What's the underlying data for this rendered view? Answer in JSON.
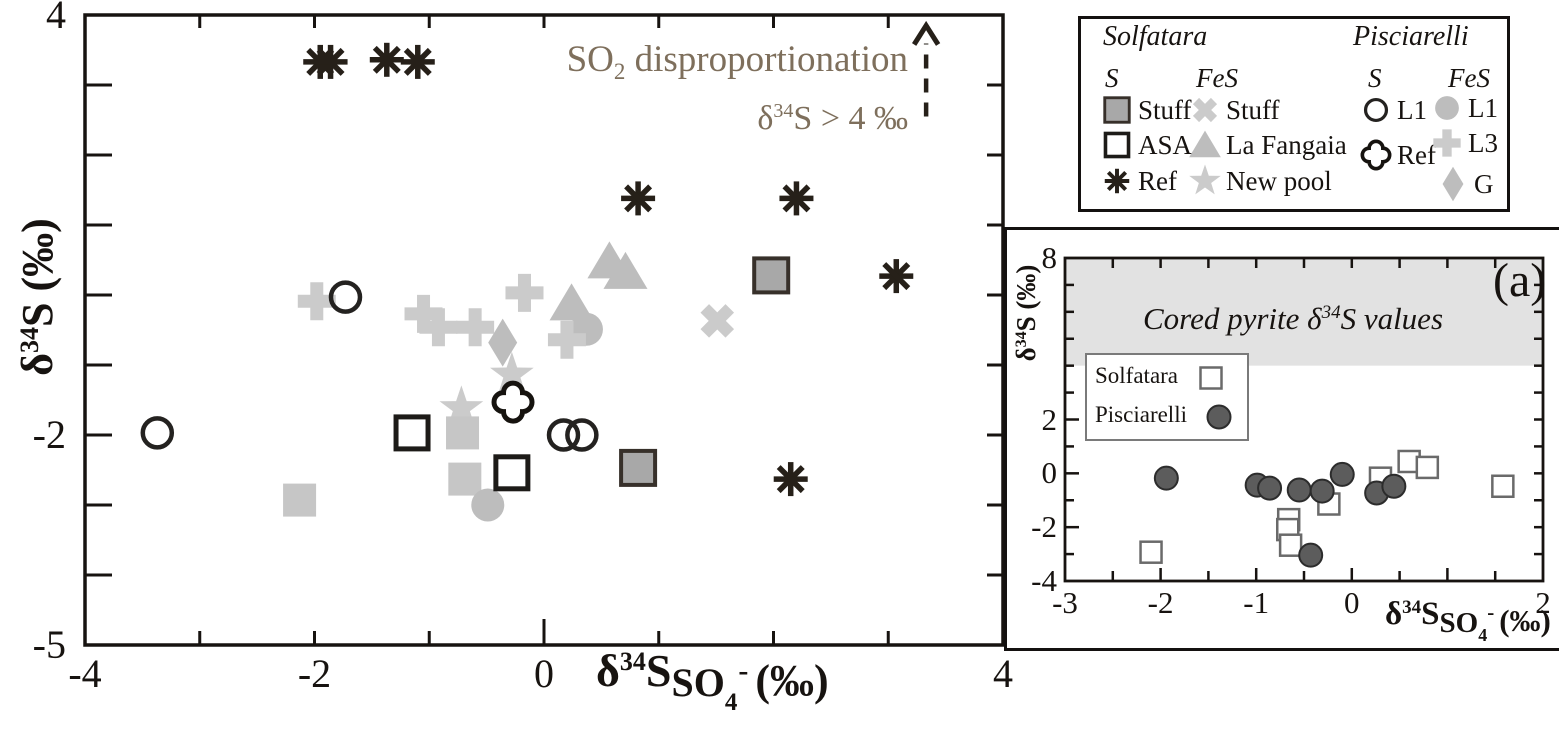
{
  "colors": {
    "ink": "#171310",
    "light_gray": "#cbcbcb",
    "mid_gray": "#bdbdbd",
    "square_fill": "#a8a8a8",
    "square_gray": "#c6c6c6",
    "annotation": "#7e6f5c",
    "band": "#e2e2e2",
    "inset_point_fill": "#5c5c5c",
    "inset_point_stroke": "#2c2c2c",
    "inset_square_stroke": "#6a6a6a"
  },
  "labels": {
    "main_y": {
      "d": "δ",
      "iso": "34",
      "rest": "S (‰)"
    },
    "main_x": {
      "d": "δ",
      "iso": "34",
      "s": "S",
      "so": "SO",
      "four": "4",
      "minus": "-",
      "unit": "(‰)"
    },
    "annotation1": {
      "pre": "SO",
      "sub": "2",
      "post": " disproportionation"
    },
    "annotation2": {
      "d": "δ",
      "iso": "34",
      "post": "S > 4 ‰"
    },
    "inset_band": {
      "pre": "Cored pyrite δ",
      "iso": "34",
      "post": "S values"
    },
    "inset_a": "(a)",
    "inset_y": {
      "d": "δ",
      "iso": "34",
      "rest": "S (‰)"
    },
    "inset_x": {
      "d": "δ",
      "iso": "34",
      "s": "S",
      "so": "SO",
      "four": "4",
      "minus": "-",
      "unit": "(‰)"
    }
  },
  "legend": {
    "groups": [
      {
        "title": "Solfatara",
        "columns": [
          {
            "header": "S",
            "items": [
              {
                "marker": "square-filled",
                "label": "Stuff"
              },
              {
                "marker": "square-open",
                "label": "ASA"
              },
              {
                "marker": "asterisk",
                "label": "Ref"
              }
            ]
          },
          {
            "header": "FeS",
            "items": [
              {
                "marker": "x",
                "label": "Stuff"
              },
              {
                "marker": "triangle",
                "label": "La Fangaia"
              },
              {
                "marker": "star",
                "label": "New pool"
              }
            ]
          }
        ]
      },
      {
        "title": "Pisciarelli",
        "columns": [
          {
            "header": "S",
            "items": [
              {
                "marker": "circle-open",
                "label": "L1"
              },
              {
                "marker": "quatrefoil",
                "label": "Ref"
              }
            ]
          },
          {
            "header": "FeS",
            "items": [
              {
                "marker": "circle-filled",
                "label": "L1"
              },
              {
                "marker": "plus",
                "label": "L3"
              },
              {
                "marker": "diamond",
                "label": "G"
              }
            ]
          }
        ]
      }
    ]
  },
  "inset_legend": {
    "items": [
      {
        "marker": "inset-square",
        "label": "Solfatara"
      },
      {
        "marker": "inset-circle",
        "label": "Pisciarelli"
      }
    ]
  },
  "chart_data": [
    {
      "type": "scatter",
      "title": "",
      "xlabel": "δ34S SO4- (‰)",
      "ylabel": "δ34S (‰)",
      "xlim": [
        -4,
        4
      ],
      "ylim": [
        -5,
        4
      ],
      "grid": false,
      "x_tick_labels": [
        {
          "v": -4,
          "label": "-4"
        },
        {
          "v": -2,
          "label": "-2"
        },
        {
          "v": 0,
          "label": "0"
        },
        {
          "v": 4,
          "label": "4"
        }
      ],
      "y_tick_labels": [
        {
          "v": 4,
          "label": "4"
        },
        {
          "v": -2,
          "label": "-2"
        },
        {
          "v": -5,
          "label": "-5"
        }
      ],
      "annotations": [
        {
          "text": "SO2 disproportionation"
        },
        {
          "text": "δ34S > 4 ‰"
        }
      ],
      "arrow": {
        "x": 3.33,
        "y_from": 2.55,
        "y_to": 3.85
      },
      "series": [
        {
          "name": "Solfatara FeS La Fangaia",
          "marker": "triangle",
          "points": [
            [
              0.57,
              0.48
            ],
            [
              0.71,
              0.33
            ],
            [
              0.24,
              -0.12
            ]
          ]
        },
        {
          "name": "Solfatara FeS Stuff",
          "marker": "x",
          "points": [
            [
              1.51,
              -0.37
            ]
          ]
        },
        {
          "name": "Solfatara FeS New pool",
          "marker": "star",
          "points": [
            [
              -0.28,
              -1.14
            ],
            [
              -0.72,
              -1.62
            ]
          ]
        },
        {
          "name": "gray squares",
          "marker": "square-gray",
          "points": [
            [
              -2.13,
              -2.93
            ],
            [
              -0.71,
              -1.97
            ],
            [
              -0.69,
              -2.63
            ]
          ]
        },
        {
          "name": "Pisciarelli FeS L1",
          "marker": "circle-filled",
          "points": [
            [
              0.37,
              -0.49
            ],
            [
              -0.49,
              -3.0
            ]
          ]
        },
        {
          "name": "Pisciarelli FeS L3",
          "marker": "plus",
          "points": [
            [
              -1.98,
              -0.09
            ],
            [
              -1.05,
              -0.27
            ],
            [
              -0.92,
              -0.46
            ],
            [
              -0.6,
              -0.46
            ],
            [
              -0.17,
              0.03
            ],
            [
              0.2,
              -0.64
            ]
          ]
        },
        {
          "name": "Pisciarelli FeS G",
          "marker": "diamond",
          "points": [
            [
              -0.36,
              -0.68
            ]
          ]
        },
        {
          "name": "Pisciarelli S Ref",
          "marker": "quatrefoil",
          "points": [
            [
              -0.27,
              -1.53
            ]
          ]
        },
        {
          "name": "Pisciarelli S L1",
          "marker": "circle-open",
          "points": [
            [
              -3.37,
              -1.97
            ],
            [
              -1.73,
              -0.03
            ],
            [
              0.17,
              -2.0
            ],
            [
              0.33,
              -2.0
            ]
          ]
        },
        {
          "name": "Solfatara S ASA",
          "marker": "square-open",
          "points": [
            [
              -1.15,
              -1.97
            ],
            [
              -0.28,
              -2.54
            ]
          ]
        },
        {
          "name": "Solfatara S Stuff",
          "marker": "square-filled",
          "points": [
            [
              1.98,
              0.28
            ],
            [
              0.82,
              -2.47
            ]
          ]
        },
        {
          "name": "Solfatara S Ref",
          "marker": "asterisk",
          "points": [
            [
              -1.95,
              3.33
            ],
            [
              -1.86,
              3.33
            ],
            [
              -1.37,
              3.36
            ],
            [
              -1.1,
              3.33
            ],
            [
              0.82,
              1.38
            ],
            [
              2.2,
              1.38
            ],
            [
              3.07,
              0.27
            ],
            [
              2.15,
              -2.63
            ]
          ]
        }
      ]
    },
    {
      "type": "scatter",
      "title": "(a)",
      "xlabel": "δ34S SO4- (‰)",
      "ylabel": "δ34S (‰)",
      "xlim": [
        -3,
        2
      ],
      "ylim": [
        -4,
        8
      ],
      "grid": false,
      "band": {
        "from": 4,
        "to": 8,
        "label": "Cored pyrite δ34S values"
      },
      "x_tick_labels": [
        {
          "v": -3,
          "label": "-3"
        },
        {
          "v": -2,
          "label": "-2"
        },
        {
          "v": -1,
          "label": "-1"
        },
        {
          "v": 0,
          "label": "0"
        },
        {
          "v": 2,
          "label": "2"
        }
      ],
      "y_tick_labels": [
        {
          "v": 8,
          "label": "8"
        },
        {
          "v": 2,
          "label": "2"
        },
        {
          "v": 0,
          "label": "0"
        },
        {
          "v": -2,
          "label": "-2"
        },
        {
          "v": -4,
          "label": "-4"
        }
      ],
      "series": [
        {
          "name": "Solfatara",
          "marker": "inset-square",
          "points": [
            [
              -2.1,
              -2.93
            ],
            [
              -0.66,
              -1.72
            ],
            [
              -0.67,
              -2.09
            ],
            [
              -0.64,
              -2.67
            ],
            [
              -0.24,
              -1.14
            ],
            [
              0.3,
              -0.18
            ],
            [
              0.6,
              0.44
            ],
            [
              0.79,
              0.22
            ],
            [
              1.58,
              -0.48
            ]
          ]
        },
        {
          "name": "Pisciarelli",
          "marker": "inset-circle",
          "points": [
            [
              -1.94,
              -0.18
            ],
            [
              -0.99,
              -0.44
            ],
            [
              -0.86,
              -0.55
            ],
            [
              -0.55,
              -0.62
            ],
            [
              -0.31,
              -0.66
            ],
            [
              -0.1,
              -0.04
            ],
            [
              0.26,
              -0.73
            ],
            [
              0.44,
              -0.48
            ],
            [
              -0.43,
              -3.04
            ]
          ]
        }
      ]
    }
  ]
}
